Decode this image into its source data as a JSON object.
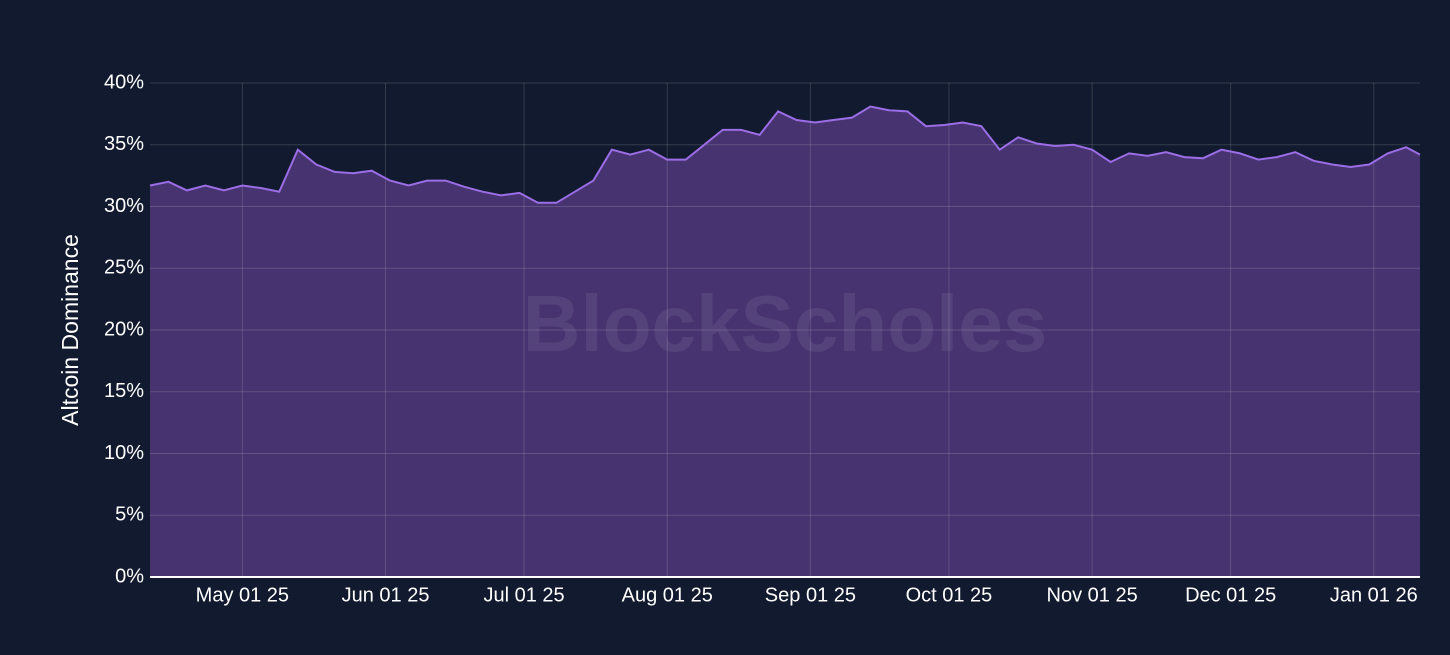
{
  "chart_data": {
    "type": "area",
    "y_label": "Altcoin Dominance",
    "watermark": "BlockScholes",
    "color": "#9b6de6",
    "fill": "#46336f",
    "grid": true,
    "x": [
      "2025-04-11",
      "2025-04-15",
      "2025-04-19",
      "2025-04-23",
      "2025-04-27",
      "2025-05-01",
      "2025-05-05",
      "2025-05-09",
      "2025-05-13",
      "2025-05-17",
      "2025-05-21",
      "2025-05-25",
      "2025-05-29",
      "2025-06-02",
      "2025-06-06",
      "2025-06-10",
      "2025-06-14",
      "2025-06-18",
      "2025-06-22",
      "2025-06-26",
      "2025-06-30",
      "2025-07-04",
      "2025-07-08",
      "2025-07-12",
      "2025-07-16",
      "2025-07-20",
      "2025-07-24",
      "2025-07-28",
      "2025-08-01",
      "2025-08-05",
      "2025-08-09",
      "2025-08-13",
      "2025-08-17",
      "2025-08-21",
      "2025-08-25",
      "2025-08-29",
      "2025-09-02",
      "2025-09-06",
      "2025-09-10",
      "2025-09-14",
      "2025-09-18",
      "2025-09-22",
      "2025-09-26",
      "2025-09-30",
      "2025-10-04",
      "2025-10-08",
      "2025-10-12",
      "2025-10-16",
      "2025-10-20",
      "2025-10-24",
      "2025-10-28",
      "2025-11-01",
      "2025-11-05",
      "2025-11-09",
      "2025-11-13",
      "2025-11-17",
      "2025-11-21",
      "2025-11-25",
      "2025-11-29",
      "2025-12-03",
      "2025-12-07",
      "2025-12-11",
      "2025-12-15",
      "2025-12-19",
      "2025-12-23",
      "2025-12-27",
      "2025-12-31",
      "2026-01-04",
      "2026-01-08",
      "2026-01-11"
    ],
    "values": [
      31.7,
      32.0,
      31.3,
      31.7,
      31.3,
      31.7,
      31.5,
      31.2,
      34.6,
      33.4,
      32.8,
      32.7,
      32.9,
      32.1,
      31.7,
      32.1,
      32.1,
      31.6,
      31.2,
      30.9,
      31.1,
      30.3,
      30.3,
      31.2,
      32.1,
      34.6,
      34.2,
      34.6,
      33.8,
      33.8,
      35.0,
      36.2,
      36.2,
      35.8,
      37.7,
      37.0,
      36.8,
      37.0,
      37.2,
      38.1,
      37.8,
      37.7,
      36.5,
      36.6,
      36.8,
      36.5,
      34.6,
      35.6,
      35.1,
      34.9,
      35.0,
      34.6,
      33.6,
      34.3,
      34.1,
      34.4,
      34.0,
      33.9,
      34.6,
      34.3,
      33.8,
      34.0,
      34.4,
      33.7,
      33.4,
      33.2,
      33.4,
      34.3,
      34.8,
      34.2
    ],
    "xlim": [
      "2025-04-11",
      "2026-01-11"
    ],
    "xticks": [
      {
        "value": "2025-05-01",
        "label": "May 01 25"
      },
      {
        "value": "2025-06-01",
        "label": "Jun 01 25"
      },
      {
        "value": "2025-07-01",
        "label": "Jul 01 25"
      },
      {
        "value": "2025-08-01",
        "label": "Aug 01 25"
      },
      {
        "value": "2025-09-01",
        "label": "Sep 01 25"
      },
      {
        "value": "2025-10-01",
        "label": "Oct 01 25"
      },
      {
        "value": "2025-11-01",
        "label": "Nov 01 25"
      },
      {
        "value": "2025-12-01",
        "label": "Dec 01 25"
      },
      {
        "value": "2026-01-01",
        "label": "Jan 01 26"
      }
    ],
    "ylim": [
      0,
      40
    ],
    "yticks": [
      {
        "value": 0,
        "label": "0%"
      },
      {
        "value": 5,
        "label": "5%"
      },
      {
        "value": 10,
        "label": "10%"
      },
      {
        "value": 15,
        "label": "15%"
      },
      {
        "value": 20,
        "label": "20%"
      },
      {
        "value": 25,
        "label": "25%"
      },
      {
        "value": 30,
        "label": "30%"
      },
      {
        "value": 35,
        "label": "35%"
      },
      {
        "value": 40,
        "label": "40%"
      }
    ]
  }
}
